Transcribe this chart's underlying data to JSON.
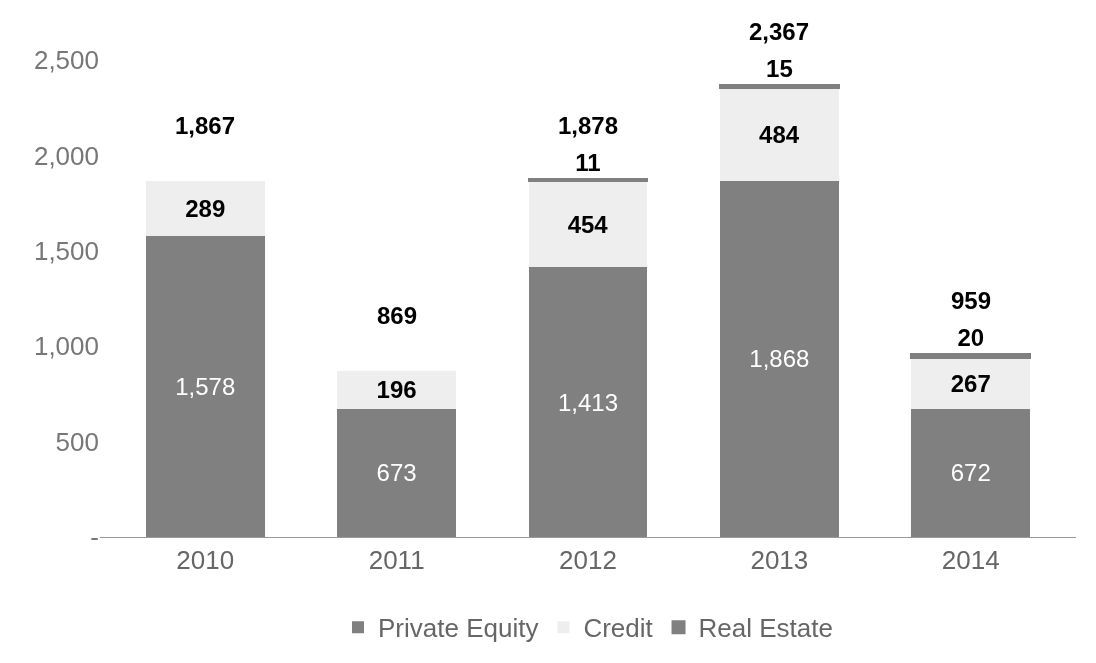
{
  "chart_data": {
    "type": "bar",
    "stacked": true,
    "categories": [
      "2010",
      "2011",
      "2012",
      "2013",
      "2014"
    ],
    "series": [
      {
        "name": "Private Equity",
        "color": "#808080",
        "values": [
          1578,
          673,
          1413,
          1868,
          672
        ],
        "value_labels": [
          "1,578",
          "673",
          "1,413",
          "1,868",
          "672"
        ]
      },
      {
        "name": "Credit",
        "color": "#eeeeee",
        "values": [
          289,
          196,
          454,
          484,
          267
        ],
        "value_labels": [
          "289",
          "196",
          "454",
          "484",
          "267"
        ]
      },
      {
        "name": "Real Estate",
        "color": "#808080",
        "values": [
          null,
          null,
          11,
          15,
          20
        ],
        "value_labels": [
          null,
          null,
          "11",
          "15",
          "20"
        ]
      }
    ],
    "totals": [
      "1,867",
      "869",
      "1,878",
      "2,367",
      "959"
    ],
    "ylim": [
      0,
      2500
    ],
    "yticks": [
      {
        "value": 0,
        "label": "-"
      },
      {
        "value": 500,
        "label": "500"
      },
      {
        "value": 1000,
        "label": "1,000"
      },
      {
        "value": 1500,
        "label": "1,500"
      },
      {
        "value": 2000,
        "label": "2,000"
      },
      {
        "value": 2500,
        "label": "2,500"
      }
    ],
    "grid": false,
    "legend": "bottom"
  }
}
